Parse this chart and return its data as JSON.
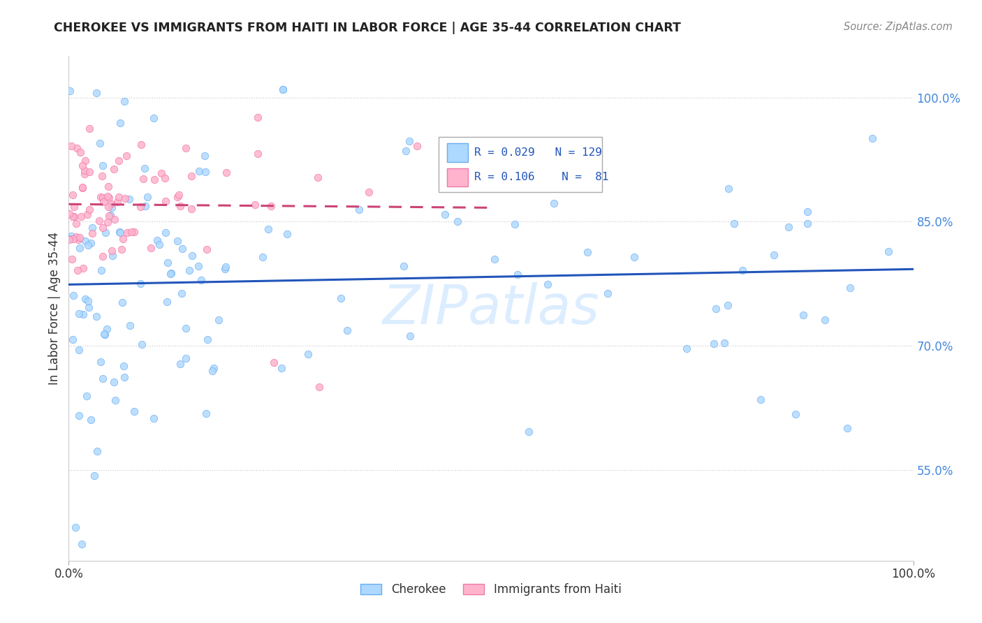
{
  "title": "CHEROKEE VS IMMIGRANTS FROM HAITI IN LABOR FORCE | AGE 35-44 CORRELATION CHART",
  "source": "Source: ZipAtlas.com",
  "ylabel": "In Labor Force | Age 35-44",
  "ytick_vals": [
    0.55,
    0.7,
    0.85,
    1.0
  ],
  "legend_cherokee_R": "0.029",
  "legend_cherokee_N": "129",
  "legend_haiti_R": "0.106",
  "legend_haiti_N": "81",
  "cherokee_color": "#add8ff",
  "cherokee_edge_color": "#6aadee",
  "haiti_color": "#ffb3cc",
  "haiti_edge_color": "#ee7aaa",
  "cherokee_line_color": "#2255bb",
  "haiti_line_color": "#cc4477",
  "watermark": "ZIPatlas",
  "xlim": [
    0.0,
    1.0
  ],
  "ylim": [
    0.44,
    1.05
  ],
  "background_color": "#ffffff",
  "grid_color": "#cccccc",
  "ytick_color": "#4488dd",
  "xtick_color": "#333333",
  "title_color": "#222222",
  "source_color": "#888888"
}
